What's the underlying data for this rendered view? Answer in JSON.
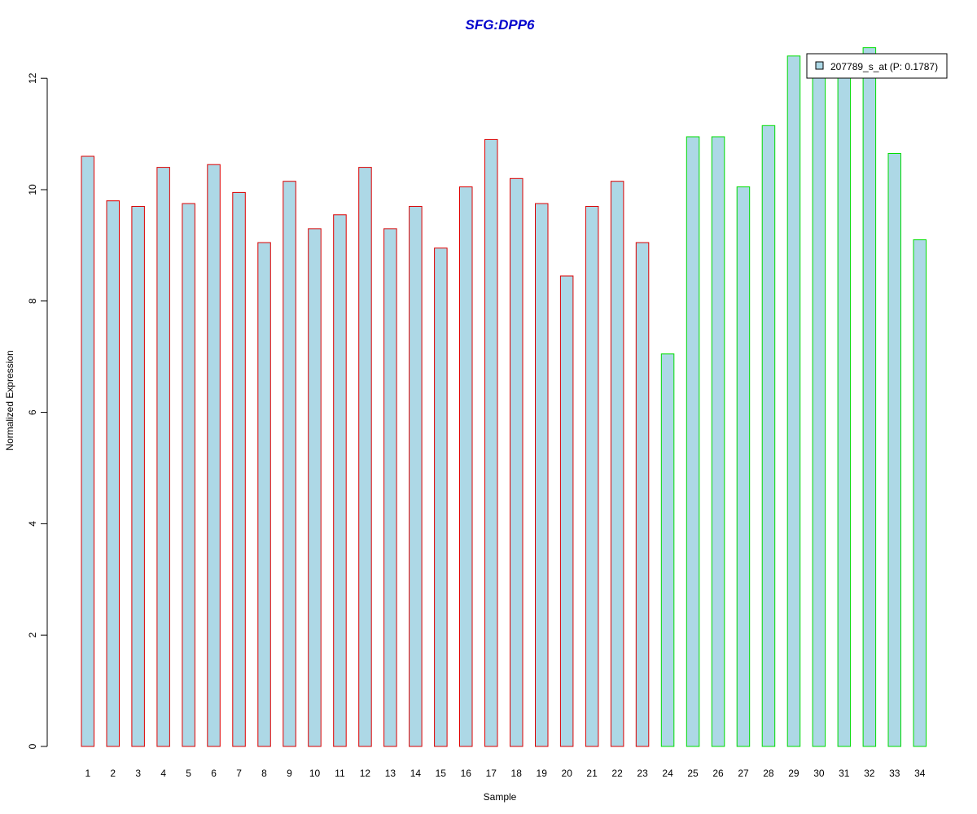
{
  "chart_data": {
    "type": "bar",
    "title": "SFG:DPP6",
    "xlabel": "Sample",
    "ylabel": "Normalized Expression",
    "ylim": [
      0,
      12.6
    ],
    "yticks": [
      "0",
      "2",
      "4",
      "6",
      "8",
      "10",
      "12"
    ],
    "categories": [
      "1",
      "2",
      "3",
      "4",
      "5",
      "6",
      "7",
      "8",
      "9",
      "10",
      "11",
      "12",
      "13",
      "14",
      "15",
      "16",
      "17",
      "18",
      "19",
      "20",
      "21",
      "22",
      "23",
      "24",
      "25",
      "26",
      "27",
      "28",
      "29",
      "30",
      "31",
      "32",
      "33",
      "34"
    ],
    "series": [
      {
        "name": "207789_s_at (P: 0.1787)",
        "values": [
          10.6,
          9.8,
          9.7,
          10.4,
          9.75,
          10.45,
          9.95,
          9.05,
          10.15,
          9.3,
          9.55,
          10.4,
          9.3,
          9.7,
          8.95,
          10.05,
          10.9,
          10.2,
          9.75,
          8.45,
          9.7,
          10.15,
          9.05,
          7.05,
          10.95,
          10.95,
          10.05,
          11.15,
          12.4,
          12.05,
          12.05,
          12.55,
          10.65,
          9.1
        ]
      }
    ],
    "groups": [
      {
        "from": 1,
        "to": 23,
        "border_color": "#dd0000"
      },
      {
        "from": 24,
        "to": 34,
        "border_color": "#00dd00"
      }
    ],
    "bar_fill": "#add8e6",
    "title_color": "#0000cc",
    "legend": {
      "position": "top-right",
      "label": "207789_s_at (P: 0.1787)"
    },
    "grid": false
  }
}
